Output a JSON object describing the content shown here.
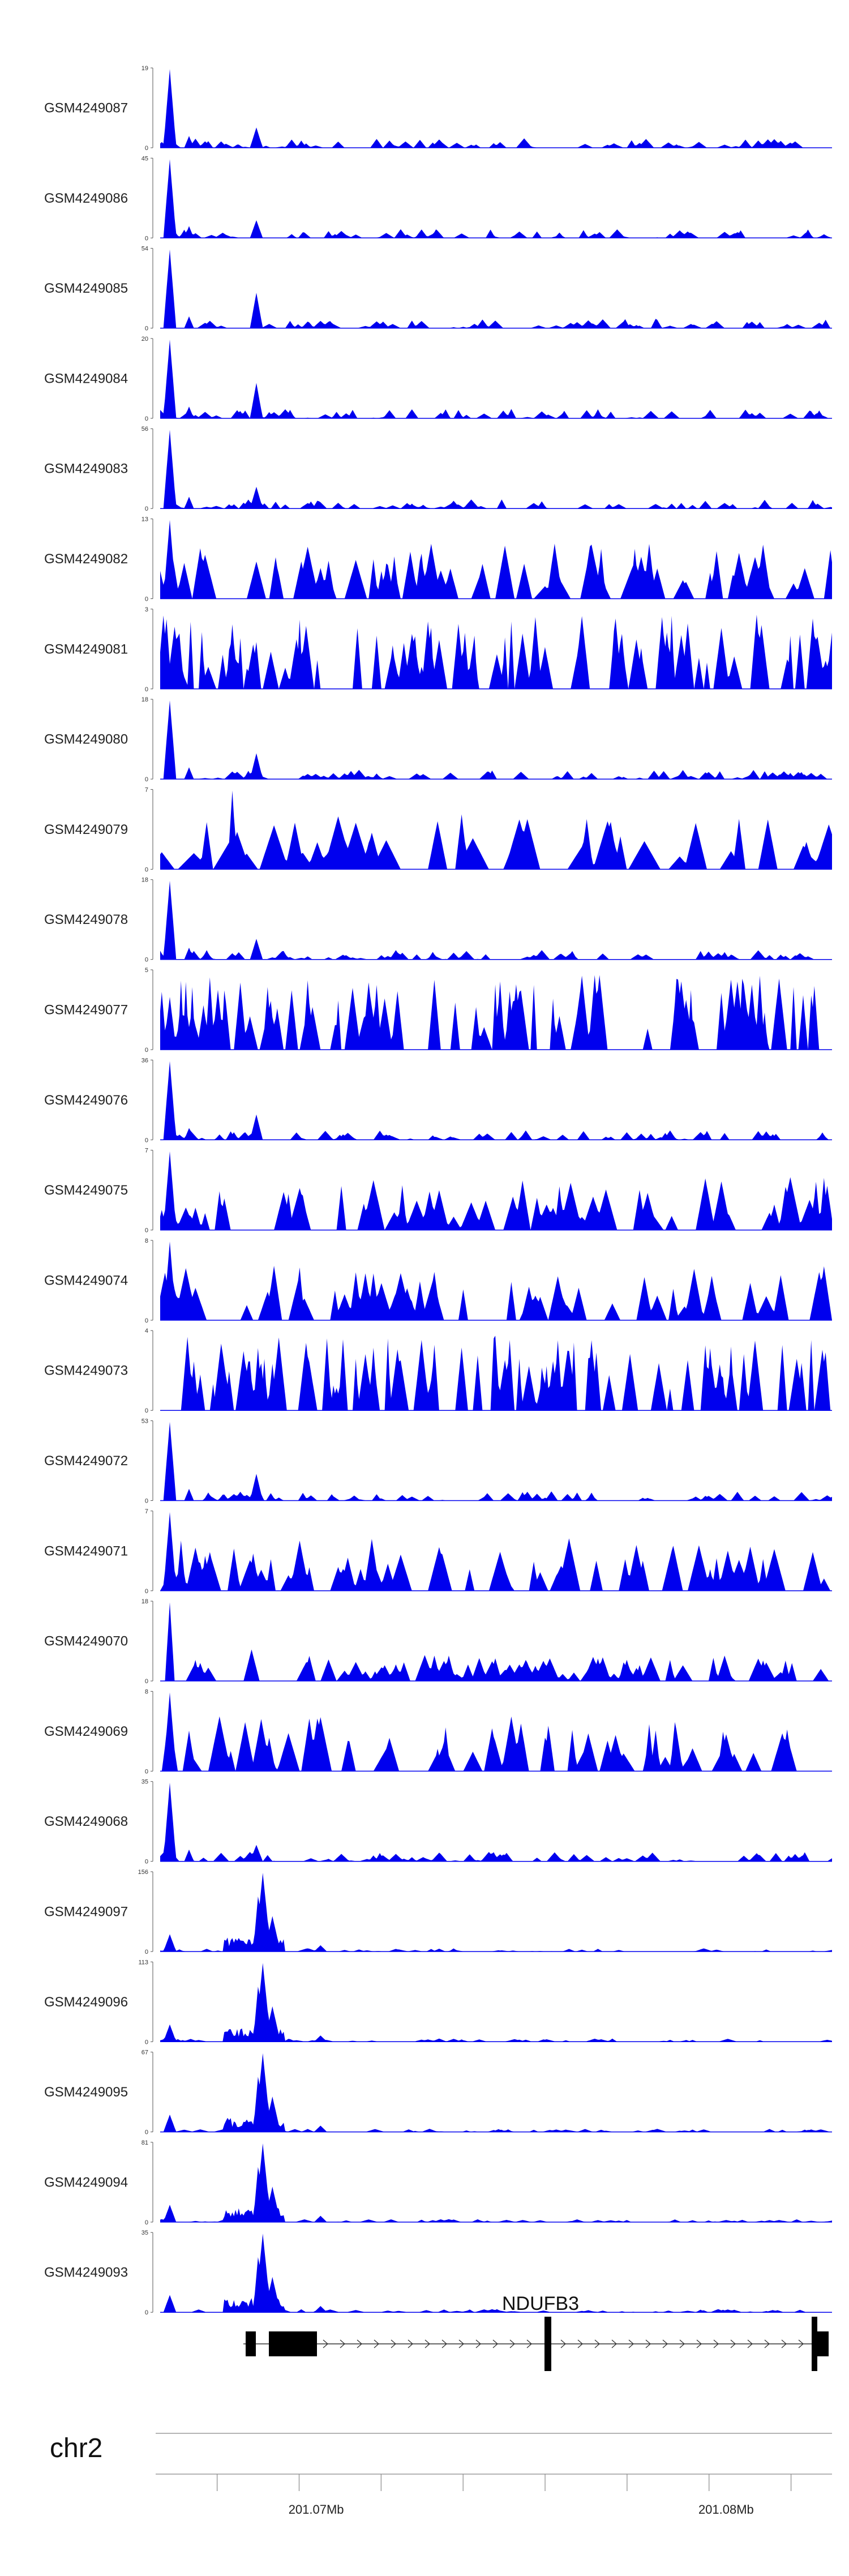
{
  "chart_data": {
    "type": "area",
    "title": "",
    "region": {
      "chromosome": "chr2",
      "start_mb": 201.066,
      "end_mb": 201.0825
    },
    "tracks": [
      {
        "name": "GSM4249087",
        "ymax": 19,
        "profile": "sparse_peak1",
        "seed": 87
      },
      {
        "name": "GSM4249086",
        "ymax": 45,
        "profile": "sparse_peak1",
        "seed": 86
      },
      {
        "name": "GSM4249085",
        "ymax": 54,
        "profile": "sparse_peak2",
        "seed": 85
      },
      {
        "name": "GSM4249084",
        "ymax": 20,
        "profile": "sparse_peak2",
        "seed": 84
      },
      {
        "name": "GSM4249083",
        "ymax": 56,
        "profile": "sparse_peak1",
        "seed": 83
      },
      {
        "name": "GSM4249082",
        "ymax": 13,
        "profile": "dense_mid",
        "seed": 82
      },
      {
        "name": "GSM4249081",
        "ymax": 3,
        "profile": "dense_high",
        "seed": 81
      },
      {
        "name": "GSM4249080",
        "ymax": 18,
        "profile": "sparse_peak1",
        "seed": 80
      },
      {
        "name": "GSM4249079",
        "ymax": 7,
        "profile": "dense_low",
        "seed": 79
      },
      {
        "name": "GSM4249078",
        "ymax": 18,
        "profile": "sparse_peak1",
        "seed": 78
      },
      {
        "name": "GSM4249077",
        "ymax": 5,
        "profile": "dense_high",
        "seed": 77
      },
      {
        "name": "GSM4249076",
        "ymax": 36,
        "profile": "sparse_peak1",
        "seed": 76
      },
      {
        "name": "GSM4249075",
        "ymax": 7,
        "profile": "dense_mid",
        "seed": 75
      },
      {
        "name": "GSM4249074",
        "ymax": 8,
        "profile": "dense_mid",
        "seed": 74
      },
      {
        "name": "GSM4249073",
        "ymax": 4,
        "profile": "dense_high",
        "seed": 73
      },
      {
        "name": "GSM4249072",
        "ymax": 53,
        "profile": "sparse_peak1",
        "seed": 72
      },
      {
        "name": "GSM4249071",
        "ymax": 7,
        "profile": "dense_mid",
        "seed": 71
      },
      {
        "name": "GSM4249070",
        "ymax": 18,
        "profile": "moderate",
        "seed": 70
      },
      {
        "name": "GSM4249069",
        "ymax": 8,
        "profile": "dense_mid",
        "seed": 69
      },
      {
        "name": "GSM4249068",
        "ymax": 35,
        "profile": "sparse_peak1",
        "seed": 68
      },
      {
        "name": "GSM4249097",
        "ymax": 156,
        "profile": "promoter",
        "seed": 97
      },
      {
        "name": "GSM4249096",
        "ymax": 113,
        "profile": "promoter",
        "seed": 96
      },
      {
        "name": "GSM4249095",
        "ymax": 67,
        "profile": "promoter",
        "seed": 95
      },
      {
        "name": "GSM4249094",
        "ymax": 81,
        "profile": "promoter",
        "seed": 94
      },
      {
        "name": "GSM4249093",
        "ymax": 35,
        "profile": "promoter",
        "seed": 93
      }
    ],
    "gene": {
      "name": "NDUFB3"
    },
    "chromosome_label": "chr2",
    "axis_ticks": [
      "201.07Mb",
      "201.08Mb"
    ],
    "fill_color": "#0000ee",
    "ymin_label": "0"
  }
}
